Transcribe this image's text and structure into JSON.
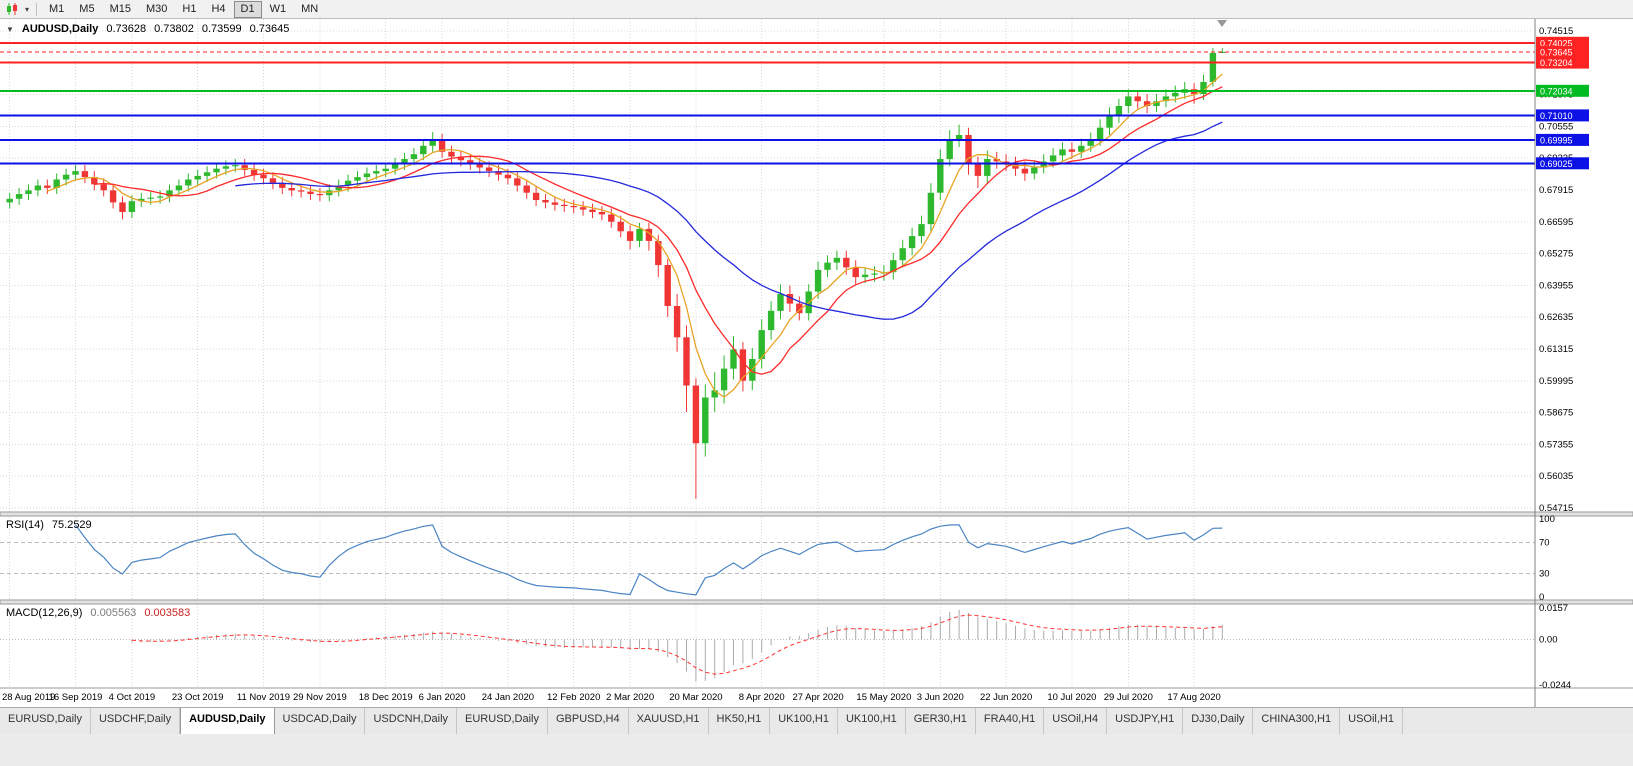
{
  "icons": {
    "collapse": "▼",
    "dropdown": "▾"
  },
  "toolbar": {
    "timeframes": [
      "M1",
      "M5",
      "M15",
      "M30",
      "H1",
      "H4",
      "D1",
      "W1",
      "MN"
    ],
    "active_timeframe": "D1"
  },
  "chart": {
    "title": "AUDUSD,Daily",
    "ohlc": {
      "open": "0.73628",
      "high": "0.73802",
      "low": "0.73599",
      "close": "0.73645"
    }
  },
  "indicators": {
    "rsi": {
      "label": "RSI(14)",
      "value": "75.2529",
      "levels": [
        "100",
        "70",
        "30",
        "0"
      ],
      "level_values": [
        100,
        70,
        30,
        0
      ],
      "dashed_levels": [
        70,
        30
      ]
    },
    "macd": {
      "label": "MACD(12,26,9)",
      "value_main": "0.005563",
      "value_signal": "0.003583",
      "axis_labels": [
        "0.0157",
        "0.00",
        "-0.0244"
      ]
    }
  },
  "chart_data": {
    "type": "candlestick",
    "symbol": "AUDUSD",
    "period": "Daily",
    "x_labels": [
      "28 Aug 2019",
      "16 Sep 2019",
      "4 Oct 2019",
      "23 Oct 2019",
      "11 Nov 2019",
      "29 Nov 2019",
      "18 Dec 2019",
      "6 Jan 2020",
      "24 Jan 2020",
      "12 Feb 2020",
      "2 Mar 2020",
      "20 Mar 2020",
      "8 Apr 2020",
      "27 Apr 2020",
      "15 May 2020",
      "3 Jun 2020",
      "22 Jun 2020",
      "10 Jul 2020",
      "29 Jul 2020",
      "17 Aug 2020"
    ],
    "x_label_indices": [
      0,
      7,
      13,
      20,
      27,
      33,
      40,
      46,
      53,
      60,
      66,
      73,
      80,
      86,
      93,
      99,
      106,
      113,
      119,
      126
    ],
    "y_axis": {
      "labels": [
        "0.74515",
        "0.73195",
        "0.71875",
        "0.70555",
        "0.69235",
        "0.67915",
        "0.66595",
        "0.65275",
        "0.63955",
        "0.62635",
        "0.61315",
        "0.59995",
        "0.58675",
        "0.57355",
        "0.56035",
        "0.54715"
      ],
      "max": 0.74515,
      "min": 0.54715
    },
    "candles": [
      [
        0.674,
        0.678,
        0.6715,
        0.6755
      ],
      [
        0.6755,
        0.68,
        0.673,
        0.6775
      ],
      [
        0.6775,
        0.6815,
        0.675,
        0.679
      ],
      [
        0.679,
        0.6835,
        0.6765,
        0.681
      ],
      [
        0.681,
        0.6835,
        0.6775,
        0.68
      ],
      [
        0.68,
        0.686,
        0.6775,
        0.6835
      ],
      [
        0.6835,
        0.688,
        0.681,
        0.6855
      ],
      [
        0.6855,
        0.6895,
        0.683,
        0.687
      ],
      [
        0.687,
        0.6895,
        0.682,
        0.6845
      ],
      [
        0.6845,
        0.687,
        0.679,
        0.6815
      ],
      [
        0.6815,
        0.684,
        0.6765,
        0.679
      ],
      [
        0.679,
        0.6815,
        0.6715,
        0.674
      ],
      [
        0.674,
        0.6765,
        0.667,
        0.67
      ],
      [
        0.67,
        0.677,
        0.6675,
        0.6745
      ],
      [
        0.6745,
        0.678,
        0.672,
        0.6755
      ],
      [
        0.6755,
        0.6785,
        0.673,
        0.676
      ],
      [
        0.676,
        0.679,
        0.6735,
        0.6765
      ],
      [
        0.6765,
        0.6815,
        0.674,
        0.679
      ],
      [
        0.679,
        0.6835,
        0.6765,
        0.681
      ],
      [
        0.681,
        0.686,
        0.6785,
        0.6835
      ],
      [
        0.6835,
        0.6875,
        0.681,
        0.685
      ],
      [
        0.685,
        0.689,
        0.6825,
        0.6865
      ],
      [
        0.6865,
        0.6905,
        0.684,
        0.688
      ],
      [
        0.688,
        0.6915,
        0.6855,
        0.689
      ],
      [
        0.689,
        0.692,
        0.6865,
        0.6895
      ],
      [
        0.6895,
        0.692,
        0.685,
        0.6875
      ],
      [
        0.6875,
        0.69,
        0.683,
        0.6855
      ],
      [
        0.6855,
        0.688,
        0.6815,
        0.684
      ],
      [
        0.684,
        0.6865,
        0.6795,
        0.682
      ],
      [
        0.682,
        0.6845,
        0.6775,
        0.68
      ],
      [
        0.68,
        0.6825,
        0.6765,
        0.679
      ],
      [
        0.679,
        0.6815,
        0.676,
        0.6785
      ],
      [
        0.6785,
        0.681,
        0.675,
        0.6775
      ],
      [
        0.6775,
        0.68,
        0.6745,
        0.677
      ],
      [
        0.677,
        0.6815,
        0.6745,
        0.679
      ],
      [
        0.679,
        0.6835,
        0.6765,
        0.681
      ],
      [
        0.681,
        0.6855,
        0.6785,
        0.683
      ],
      [
        0.683,
        0.687,
        0.6805,
        0.6845
      ],
      [
        0.6845,
        0.6885,
        0.682,
        0.686
      ],
      [
        0.686,
        0.6895,
        0.6835,
        0.687
      ],
      [
        0.687,
        0.6905,
        0.6845,
        0.688
      ],
      [
        0.688,
        0.6925,
        0.6855,
        0.69
      ],
      [
        0.69,
        0.6945,
        0.6875,
        0.692
      ],
      [
        0.692,
        0.6965,
        0.6895,
        0.694
      ],
      [
        0.694,
        0.7,
        0.6915,
        0.6975
      ],
      [
        0.6975,
        0.7032,
        0.695,
        0.7
      ],
      [
        0.7,
        0.7025,
        0.6925,
        0.695
      ],
      [
        0.695,
        0.6975,
        0.6905,
        0.693
      ],
      [
        0.693,
        0.6955,
        0.689,
        0.6915
      ],
      [
        0.6915,
        0.694,
        0.6875,
        0.69
      ],
      [
        0.69,
        0.6925,
        0.686,
        0.6885
      ],
      [
        0.6885,
        0.691,
        0.6845,
        0.687
      ],
      [
        0.687,
        0.6895,
        0.683,
        0.6855
      ],
      [
        0.6855,
        0.688,
        0.6815,
        0.684
      ],
      [
        0.684,
        0.6865,
        0.6785,
        0.681
      ],
      [
        0.681,
        0.6835,
        0.6755,
        0.678
      ],
      [
        0.678,
        0.6805,
        0.6725,
        0.675
      ],
      [
        0.675,
        0.6775,
        0.6715,
        0.674
      ],
      [
        0.674,
        0.6765,
        0.6705,
        0.673
      ],
      [
        0.673,
        0.6755,
        0.67,
        0.6725
      ],
      [
        0.6725,
        0.675,
        0.6695,
        0.672
      ],
      [
        0.672,
        0.6745,
        0.6685,
        0.671
      ],
      [
        0.671,
        0.6735,
        0.6675,
        0.67
      ],
      [
        0.67,
        0.6725,
        0.6665,
        0.669
      ],
      [
        0.669,
        0.6715,
        0.6635,
        0.666
      ],
      [
        0.666,
        0.6685,
        0.6595,
        0.662
      ],
      [
        0.662,
        0.6645,
        0.6545,
        0.658
      ],
      [
        0.658,
        0.6655,
        0.6555,
        0.663
      ],
      [
        0.663,
        0.6655,
        0.654,
        0.658
      ],
      [
        0.658,
        0.6605,
        0.643,
        0.648
      ],
      [
        0.648,
        0.6505,
        0.6265,
        0.631
      ],
      [
        0.631,
        0.636,
        0.612,
        0.618
      ],
      [
        0.618,
        0.623,
        0.587,
        0.598
      ],
      [
        0.598,
        0.601,
        0.551,
        0.574
      ],
      [
        0.574,
        0.5985,
        0.5685,
        0.593
      ],
      [
        0.593,
        0.6035,
        0.587,
        0.596
      ],
      [
        0.596,
        0.6105,
        0.5905,
        0.605
      ],
      [
        0.605,
        0.6185,
        0.6005,
        0.613
      ],
      [
        0.613,
        0.616,
        0.5955,
        0.6
      ],
      [
        0.6,
        0.6135,
        0.596,
        0.609
      ],
      [
        0.609,
        0.6255,
        0.605,
        0.621
      ],
      [
        0.621,
        0.633,
        0.617,
        0.629
      ],
      [
        0.629,
        0.64,
        0.6255,
        0.636
      ],
      [
        0.636,
        0.6395,
        0.6285,
        0.632
      ],
      [
        0.632,
        0.635,
        0.625,
        0.628
      ],
      [
        0.628,
        0.64,
        0.625,
        0.637
      ],
      [
        0.637,
        0.6495,
        0.634,
        0.646
      ],
      [
        0.646,
        0.652,
        0.643,
        0.649
      ],
      [
        0.649,
        0.654,
        0.646,
        0.651
      ],
      [
        0.651,
        0.654,
        0.644,
        0.647
      ],
      [
        0.647,
        0.65,
        0.64,
        0.643
      ],
      [
        0.643,
        0.647,
        0.6405,
        0.644
      ],
      [
        0.644,
        0.6475,
        0.641,
        0.6445
      ],
      [
        0.6445,
        0.648,
        0.6415,
        0.645
      ],
      [
        0.645,
        0.653,
        0.642,
        0.65
      ],
      [
        0.65,
        0.6585,
        0.647,
        0.655
      ],
      [
        0.655,
        0.6635,
        0.652,
        0.66
      ],
      [
        0.66,
        0.6685,
        0.657,
        0.665
      ],
      [
        0.665,
        0.682,
        0.662,
        0.678
      ],
      [
        0.678,
        0.696,
        0.675,
        0.692
      ],
      [
        0.692,
        0.704,
        0.689,
        0.7
      ],
      [
        0.7,
        0.7063,
        0.697,
        0.702
      ],
      [
        0.702,
        0.705,
        0.6855,
        0.69
      ],
      [
        0.69,
        0.693,
        0.68,
        0.685
      ],
      [
        0.685,
        0.6955,
        0.682,
        0.692
      ],
      [
        0.692,
        0.695,
        0.688,
        0.691
      ],
      [
        0.691,
        0.694,
        0.687,
        0.69
      ],
      [
        0.69,
        0.693,
        0.685,
        0.688
      ],
      [
        0.688,
        0.691,
        0.683,
        0.686
      ],
      [
        0.686,
        0.6915,
        0.6835,
        0.6885
      ],
      [
        0.6885,
        0.694,
        0.686,
        0.691
      ],
      [
        0.691,
        0.6965,
        0.6885,
        0.6935
      ],
      [
        0.6935,
        0.699,
        0.691,
        0.696
      ],
      [
        0.696,
        0.699,
        0.692,
        0.695
      ],
      [
        0.695,
        0.7005,
        0.6925,
        0.6975
      ],
      [
        0.6975,
        0.703,
        0.695,
        0.7
      ],
      [
        0.7,
        0.7085,
        0.6975,
        0.705
      ],
      [
        0.705,
        0.7135,
        0.702,
        0.71
      ],
      [
        0.71,
        0.717,
        0.707,
        0.714
      ],
      [
        0.714,
        0.721,
        0.711,
        0.718
      ],
      [
        0.718,
        0.7205,
        0.713,
        0.716
      ],
      [
        0.716,
        0.719,
        0.711,
        0.714
      ],
      [
        0.714,
        0.719,
        0.7115,
        0.716
      ],
      [
        0.716,
        0.721,
        0.7135,
        0.718
      ],
      [
        0.718,
        0.7225,
        0.7155,
        0.7195
      ],
      [
        0.7195,
        0.724,
        0.717,
        0.721
      ],
      [
        0.721,
        0.7235,
        0.715,
        0.719
      ],
      [
        0.719,
        0.727,
        0.7165,
        0.724
      ],
      [
        0.724,
        0.738,
        0.722,
        0.736
      ],
      [
        0.73628,
        0.73802,
        0.73599,
        0.73645
      ]
    ],
    "moving_averages": [
      {
        "name": "ma-fast",
        "period": 5,
        "color": "#e8a425"
      },
      {
        "name": "ma-medium",
        "period": 10,
        "color": "#ff2a2a"
      },
      {
        "name": "ma-slow",
        "period": 25,
        "color": "#2428dd"
      }
    ],
    "hlines": [
      {
        "price": 0.74025,
        "label": "0.74025",
        "color": "#ff2222",
        "width": 2
      },
      {
        "price": 0.73204,
        "label": "0.73204",
        "color": "#ff2222",
        "width": 2
      },
      {
        "price": 0.72034,
        "label": "0.72034",
        "color": "#00bb22",
        "width": 2
      },
      {
        "price": 0.7101,
        "label": "0.71010",
        "color": "#0d11e6",
        "width": 2
      },
      {
        "price": 0.69995,
        "label": "0.69995",
        "color": "#0d11e6",
        "width": 2
      },
      {
        "price": 0.69025,
        "label": "0.69025",
        "color": "#0d11e6",
        "width": 2
      }
    ],
    "current_price": {
      "price": 0.73645,
      "label": "0.73645",
      "color": "#ff2222"
    },
    "colors": {
      "up": "#2db82d",
      "down": "#f03535",
      "grid": "#d8d8d8",
      "rsi": "#4a84c4",
      "macd_hist": "#aaaaaa",
      "macd_signal": "#ff3333"
    }
  },
  "tabs": [
    {
      "label": "EURUSD,Daily"
    },
    {
      "label": "USDCHF,Daily"
    },
    {
      "label": "AUDUSD,Daily",
      "active": true
    },
    {
      "label": "USDCAD,Daily"
    },
    {
      "label": "USDCNH,Daily"
    },
    {
      "label": "EURUSD,Daily"
    },
    {
      "label": "GBPUSD,H4"
    },
    {
      "label": "XAUUSD,H1"
    },
    {
      "label": "HK50,H1"
    },
    {
      "label": "UK100,H1"
    },
    {
      "label": "UK100,H1"
    },
    {
      "label": "GER30,H1"
    },
    {
      "label": "FRA40,H1"
    },
    {
      "label": "USOil,H4"
    },
    {
      "label": "USDJPY,H1"
    },
    {
      "label": "DJ30,Daily"
    },
    {
      "label": "CHINA300,H1"
    },
    {
      "label": "USOil,H1"
    }
  ]
}
